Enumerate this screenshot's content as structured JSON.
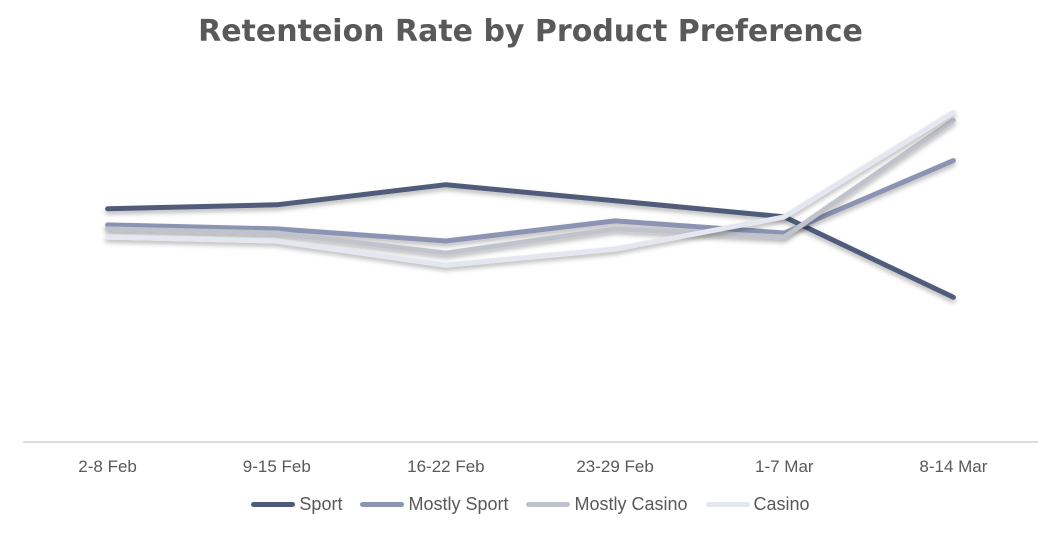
{
  "chart_data": {
    "type": "line",
    "title": "Retenteion Rate by Product Preference",
    "xlabel": "",
    "ylabel": "",
    "categories": [
      "2-8 Feb",
      "9-15 Feb",
      "16-22 Feb",
      "23-29 Feb",
      "1-7 Mar",
      "8-14 Mar"
    ],
    "ylim": [
      0,
      1
    ],
    "grid": false,
    "legend": "bottom",
    "series": [
      {
        "name": "Sport",
        "color": "#4f5b7a",
        "values": [
          0.58,
          0.59,
          0.64,
          0.6,
          0.56,
          0.36
        ]
      },
      {
        "name": "Mostly Sport",
        "color": "#8b94b3",
        "values": [
          0.54,
          0.53,
          0.5,
          0.55,
          0.52,
          0.7
        ]
      },
      {
        "name": "Mostly Casino",
        "color": "#c0c3cb",
        "values": [
          0.53,
          0.52,
          0.47,
          0.53,
          0.51,
          0.8
        ]
      },
      {
        "name": "Casino",
        "color": "#e4e7ef",
        "values": [
          0.51,
          0.5,
          0.44,
          0.48,
          0.56,
          0.82
        ]
      }
    ]
  }
}
